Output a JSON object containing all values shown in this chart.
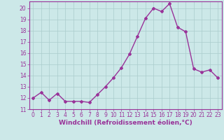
{
  "x": [
    0,
    1,
    2,
    3,
    4,
    5,
    6,
    7,
    8,
    9,
    10,
    11,
    12,
    13,
    14,
    15,
    16,
    17,
    18,
    19,
    20,
    21,
    22,
    23
  ],
  "y": [
    12.0,
    12.5,
    11.8,
    12.4,
    11.7,
    11.7,
    11.7,
    11.6,
    12.3,
    13.0,
    13.8,
    14.7,
    15.9,
    17.5,
    19.1,
    20.0,
    19.7,
    20.4,
    18.3,
    17.9,
    14.6,
    14.3,
    14.5,
    13.8
  ],
  "line_color": "#993399",
  "marker": "D",
  "marker_size": 2,
  "line_width": 1.0,
  "bg_color": "#cce8e8",
  "grid_color": "#aacccc",
  "xlabel": "Windchill (Refroidissement éolien,°C)",
  "xlim": [
    -0.5,
    23.5
  ],
  "ylim": [
    11,
    20.6
  ],
  "yticks": [
    11,
    12,
    13,
    14,
    15,
    16,
    17,
    18,
    19,
    20
  ],
  "xticks": [
    0,
    1,
    2,
    3,
    4,
    5,
    6,
    7,
    8,
    9,
    10,
    11,
    12,
    13,
    14,
    15,
    16,
    17,
    18,
    19,
    20,
    21,
    22,
    23
  ],
  "tick_label_color": "#993399",
  "tick_label_size": 5.5,
  "xlabel_size": 6.5,
  "xlabel_color": "#993399",
  "spine_color": "#993399"
}
